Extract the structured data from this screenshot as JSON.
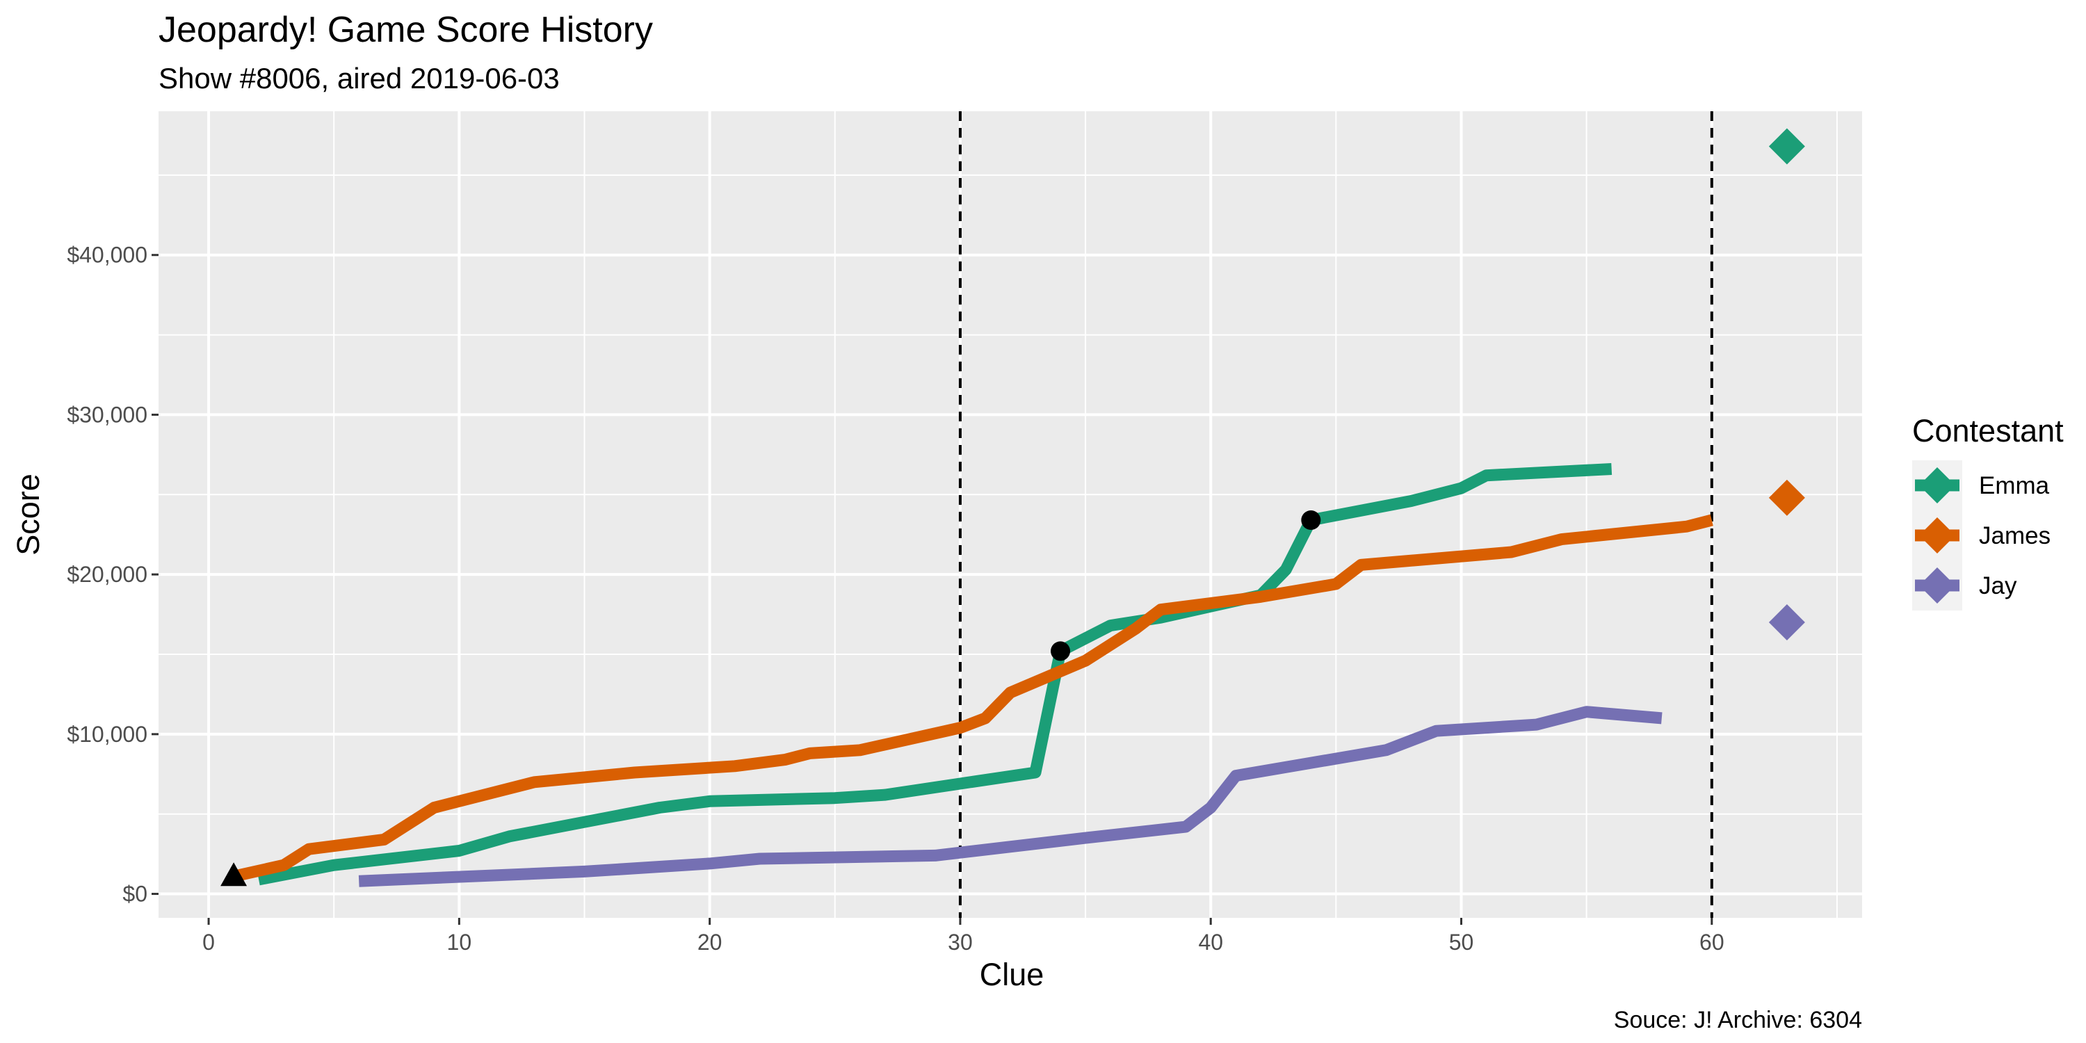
{
  "chart_data": {
    "type": "line",
    "title": "Jeopardy! Game Score History",
    "subtitle": "Show #8006, aired 2019-06-03",
    "xlabel": "Clue",
    "ylabel": "Score",
    "caption": "Souce: J! Archive: 6304",
    "xlim": [
      -2,
      66
    ],
    "ylim": [
      -1500,
      49000
    ],
    "x_ticks": [
      0,
      10,
      20,
      30,
      40,
      50,
      60
    ],
    "y_ticks": [
      0,
      10000,
      20000,
      30000,
      40000
    ],
    "y_tick_labels": [
      "$0",
      "$10,000",
      "$20,000",
      "$30,000",
      "$40,000"
    ],
    "grid": true,
    "vlines": [
      30,
      60
    ],
    "legend": {
      "title": "Contestant",
      "placement": "right",
      "entries": [
        "Emma",
        "James",
        "Jay"
      ]
    },
    "series": [
      {
        "name": "Emma",
        "color": "#1b9e77",
        "points": [
          [
            2,
            900
          ],
          [
            5,
            1800
          ],
          [
            10,
            2700
          ],
          [
            12,
            3600
          ],
          [
            15,
            4500
          ],
          [
            18,
            5400
          ],
          [
            20,
            5800
          ],
          [
            25,
            6000
          ],
          [
            27,
            6200
          ],
          [
            30,
            6900
          ],
          [
            33,
            7600
          ],
          [
            34,
            15200
          ],
          [
            36,
            16800
          ],
          [
            38,
            17300
          ],
          [
            42,
            18700
          ],
          [
            43,
            20300
          ],
          [
            44,
            23400
          ],
          [
            48,
            24600
          ],
          [
            50,
            25400
          ],
          [
            51,
            26200
          ],
          [
            56,
            26600
          ]
        ],
        "final_score": 46800
      },
      {
        "name": "James",
        "color": "#d95f02",
        "points": [
          [
            1,
            1100
          ],
          [
            3,
            1800
          ],
          [
            4,
            2800
          ],
          [
            7,
            3400
          ],
          [
            9,
            5400
          ],
          [
            13,
            7000
          ],
          [
            17,
            7600
          ],
          [
            21,
            8000
          ],
          [
            23,
            8400
          ],
          [
            24,
            8800
          ],
          [
            26,
            9000
          ],
          [
            30,
            10400
          ],
          [
            31,
            11000
          ],
          [
            32,
            12600
          ],
          [
            35,
            14600
          ],
          [
            37,
            16600
          ],
          [
            38,
            17800
          ],
          [
            42,
            18600
          ],
          [
            45,
            19400
          ],
          [
            46,
            20600
          ],
          [
            52,
            21400
          ],
          [
            54,
            22200
          ],
          [
            59,
            23000
          ],
          [
            60,
            23400
          ]
        ],
        "final_score": 24800
      },
      {
        "name": "Jay",
        "color": "#7570b3",
        "points": [
          [
            6,
            800
          ],
          [
            15,
            1400
          ],
          [
            20,
            1900
          ],
          [
            22,
            2200
          ],
          [
            29,
            2400
          ],
          [
            35,
            3500
          ],
          [
            39,
            4200
          ],
          [
            40,
            5400
          ],
          [
            41,
            7400
          ],
          [
            47,
            9000
          ],
          [
            49,
            10200
          ],
          [
            53,
            10600
          ],
          [
            55,
            11400
          ],
          [
            58,
            11000
          ]
        ],
        "final_score": 17000
      }
    ],
    "markers": {
      "start_triangle": [
        1,
        1100
      ],
      "daily_doubles": [
        [
          34,
          15200
        ],
        [
          44,
          23400
        ]
      ],
      "final_x": 63
    }
  }
}
